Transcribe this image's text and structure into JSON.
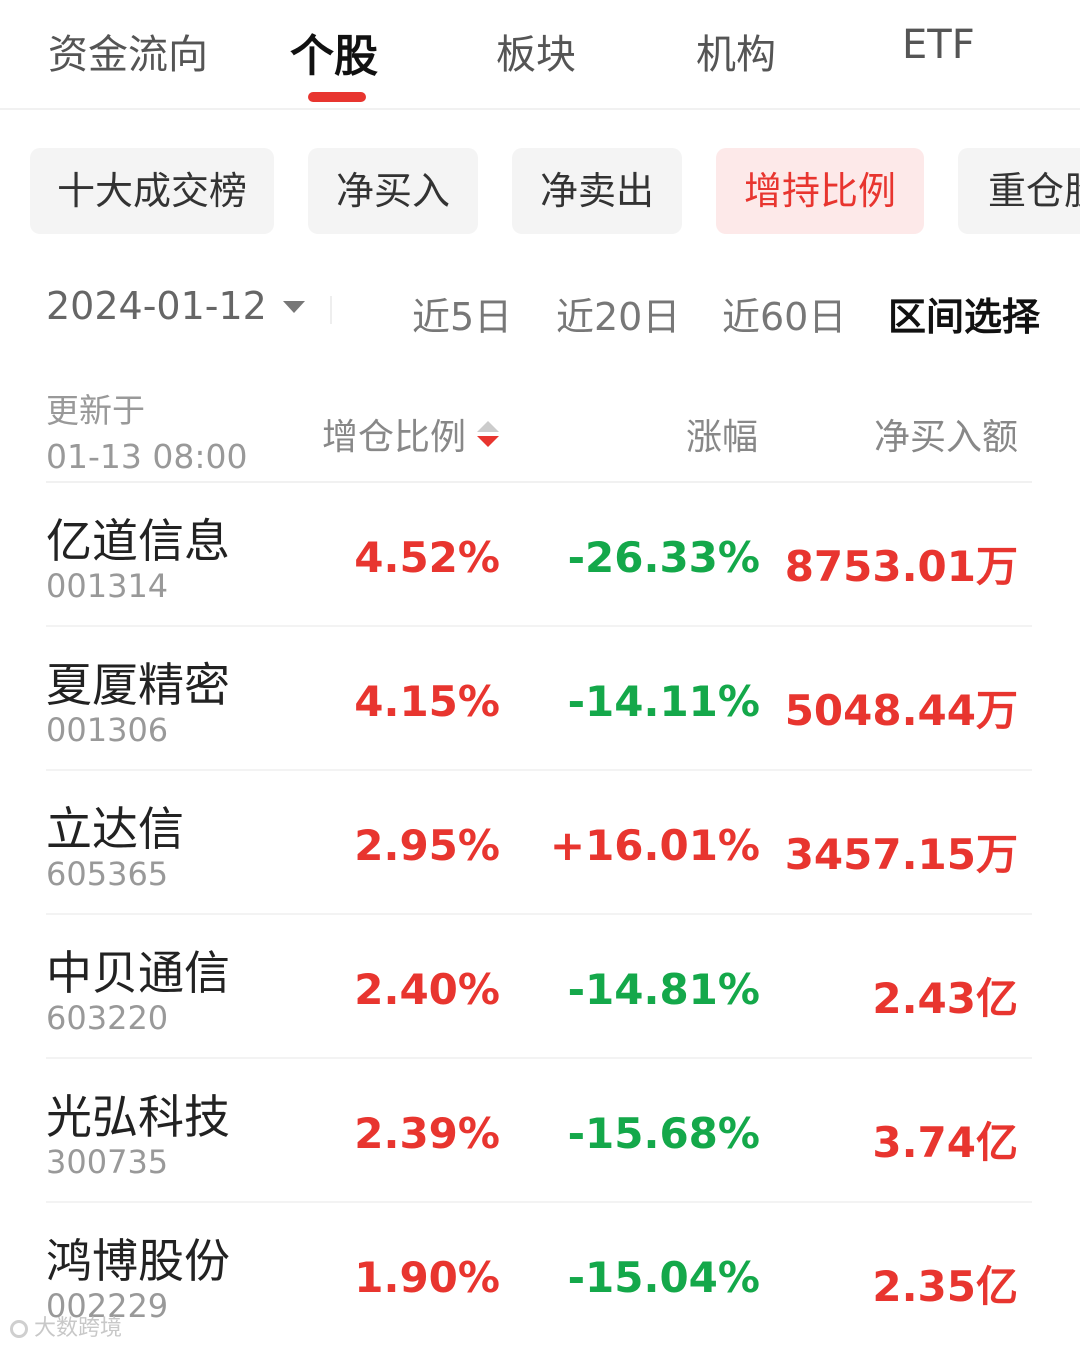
{
  "top_tabs": [
    "资金流向",
    "个股",
    "板块",
    "机构",
    "ETF"
  ],
  "active_tab": "个股",
  "filters": [
    "十大成交榜",
    "净买入",
    "净卖出",
    "增持比例",
    "重仓股"
  ],
  "active_filter": "增持比例",
  "date": {
    "value": "2024-01-12"
  },
  "ranges": [
    "近5日",
    "近20日",
    "近60日",
    "区间选择"
  ],
  "header": {
    "updated_label": "更新于",
    "updated_time": "01-13 08:00",
    "col_ratio": "增仓比例",
    "col_change": "涨幅",
    "col_net": "净买入额"
  },
  "rows": [
    {
      "name": "亿道信息",
      "code": "001314",
      "ratio": "4.52%",
      "change": "-26.33%",
      "net": "8753.01万"
    },
    {
      "name": "夏厦精密",
      "code": "001306",
      "ratio": "4.15%",
      "change": "-14.11%",
      "net": "5048.44万"
    },
    {
      "name": "立达信",
      "code": "605365",
      "ratio": "2.95%",
      "change": "+16.01%",
      "net": "3457.15万"
    },
    {
      "name": "中贝通信",
      "code": "603220",
      "ratio": "2.40%",
      "change": "-14.81%",
      "net": "2.43亿"
    },
    {
      "name": "光弘科技",
      "code": "300735",
      "ratio": "2.39%",
      "change": "-15.68%",
      "net": "3.74亿"
    },
    {
      "name": "鸿博股份",
      "code": "002229",
      "ratio": "1.90%",
      "change": "-15.04%",
      "net": "2.35亿"
    }
  ],
  "colors": {
    "up": "#e8352f",
    "down": "#14a84a"
  },
  "watermark": "大数跨境"
}
